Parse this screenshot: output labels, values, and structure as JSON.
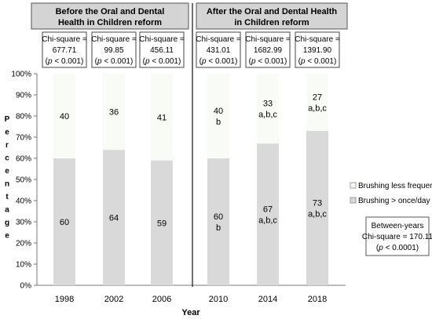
{
  "chart_data": {
    "type": "bar",
    "stacked": true,
    "categories": [
      "1998",
      "2002",
      "2006",
      "2010",
      "2014",
      "2018"
    ],
    "series": [
      {
        "name": "Brushing > once/day",
        "values": [
          60,
          64,
          59,
          60,
          67,
          73
        ],
        "labels": [
          "60",
          "64",
          "59",
          "60",
          "67",
          "73"
        ],
        "sublabels": [
          "",
          "",
          "",
          "b",
          "a,b,c",
          "a,b,c"
        ],
        "color": "#d9d9d9"
      },
      {
        "name": "Brushing less frequently",
        "values": [
          40,
          36,
          41,
          40,
          33,
          27
        ],
        "labels": [
          "40",
          "36",
          "41",
          "40",
          "33",
          "27"
        ],
        "sublabels": [
          "",
          "",
          "",
          "b",
          "a,b,c",
          "a,b,c"
        ],
        "color": "#f9fbf7"
      }
    ],
    "xlabel": "Year",
    "ylabel": "Percentage",
    "ylim": [
      0,
      100
    ],
    "yticks": [
      "0%",
      "10%",
      "20%",
      "30%",
      "40%",
      "50%",
      "60%",
      "70%",
      "80%",
      "90%",
      "100%"
    ],
    "grid": false,
    "legend_position": "right",
    "period_headers": [
      {
        "line1": "Before the Oral and Dental",
        "line2": "Health in Children reform"
      },
      {
        "line1": "After the Oral and Dental Health",
        "line2": "in Children reform"
      }
    ],
    "year_stats": [
      {
        "line1": "Chi-square  =",
        "line2": "677.71"
      },
      {
        "line1": "Chi-square  =",
        "line2": "99.85"
      },
      {
        "line1": "Chi-square  =",
        "line2": "456.11"
      },
      {
        "line1": "Chi-square  =",
        "line2": "431.01"
      },
      {
        "line1": "Chi-square  =",
        "line2": "1682.99"
      },
      {
        "line1": "Chi-square  =",
        "line2": "1391.90"
      }
    ],
    "pvalue": {
      "open": "(",
      "p": "p",
      "rest": " < 0.001)"
    },
    "between_years": {
      "line1": "Between-years",
      "line2": "Chi-square = 170.11",
      "p_open": "(",
      "p": "p",
      "p_rest": " < 0.0001)"
    }
  }
}
